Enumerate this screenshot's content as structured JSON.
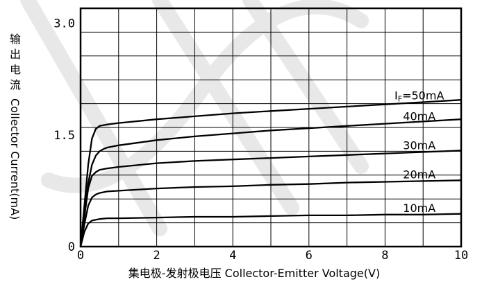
{
  "chart_data": {
    "type": "line",
    "title": "",
    "xlabel": "集电极-发射极电压 Collector-Emitter Voltage(V)",
    "ylabel_cn": [
      "输",
      "出",
      "电",
      "流"
    ],
    "ylabel_en": "Collector Current(mA)",
    "xlim": [
      0,
      10
    ],
    "ylim": [
      0,
      3.2
    ],
    "x_ticks": [
      {
        "value": 0,
        "label": "0"
      },
      {
        "value": 2,
        "label": "2"
      },
      {
        "value": 4,
        "label": "4"
      },
      {
        "value": 6,
        "label": "6"
      },
      {
        "value": 8,
        "label": "8"
      },
      {
        "value": 10,
        "label": "10"
      }
    ],
    "y_ticks": [
      {
        "value": 0,
        "label": "0"
      },
      {
        "value": 1.5,
        "label": "1.5"
      },
      {
        "value": 3.0,
        "label": "3.0"
      }
    ],
    "grid": true,
    "series": [
      {
        "name": "IF=50mA",
        "label_parts": [
          "I",
          "F",
          "=50mA"
        ],
        "x": [
          0,
          0.1,
          0.2,
          0.3,
          0.4,
          0.5,
          0.7,
          1,
          2,
          3,
          4,
          5,
          6,
          7,
          8,
          9,
          10
        ],
        "y": [
          0,
          0.55,
          1.1,
          1.45,
          1.58,
          1.62,
          1.64,
          1.66,
          1.71,
          1.75,
          1.79,
          1.82,
          1.85,
          1.88,
          1.91,
          1.94,
          1.97
        ]
      },
      {
        "name": "40mA",
        "x": [
          0,
          0.1,
          0.2,
          0.3,
          0.4,
          0.5,
          0.6,
          0.7,
          1,
          2,
          3,
          4,
          5,
          6,
          7,
          8,
          9,
          10
        ],
        "y": [
          0,
          0.45,
          0.85,
          1.1,
          1.22,
          1.28,
          1.31,
          1.33,
          1.36,
          1.43,
          1.48,
          1.52,
          1.56,
          1.59,
          1.62,
          1.65,
          1.68,
          1.71
        ]
      },
      {
        "name": "30mA",
        "x": [
          0,
          0.1,
          0.2,
          0.3,
          0.4,
          0.5,
          0.7,
          1,
          2,
          3,
          4,
          5,
          6,
          7,
          8,
          9,
          10
        ],
        "y": [
          0,
          0.4,
          0.78,
          0.95,
          1.0,
          1.03,
          1.05,
          1.07,
          1.12,
          1.15,
          1.17,
          1.19,
          1.21,
          1.23,
          1.25,
          1.27,
          1.29
        ]
      },
      {
        "name": "20mA",
        "x": [
          0,
          0.1,
          0.2,
          0.3,
          0.4,
          0.5,
          0.7,
          1,
          2,
          3,
          4,
          5,
          6,
          7,
          8,
          9,
          10
        ],
        "y": [
          0,
          0.3,
          0.55,
          0.66,
          0.7,
          0.72,
          0.74,
          0.75,
          0.78,
          0.8,
          0.81,
          0.83,
          0.84,
          0.86,
          0.87,
          0.88,
          0.89
        ]
      },
      {
        "name": "10mA",
        "x": [
          0,
          0.1,
          0.2,
          0.3,
          0.4,
          0.5,
          0.7,
          1,
          2,
          3,
          4,
          5,
          6,
          7,
          8,
          9,
          10
        ],
        "y": [
          0,
          0.2,
          0.31,
          0.35,
          0.36,
          0.37,
          0.38,
          0.38,
          0.39,
          0.4,
          0.4,
          0.41,
          0.42,
          0.42,
          0.43,
          0.43,
          0.44
        ]
      }
    ],
    "colors": {
      "line": "#000000",
      "grid": "#000000",
      "background": "#ffffff",
      "watermark": "#e8e8e8"
    }
  }
}
